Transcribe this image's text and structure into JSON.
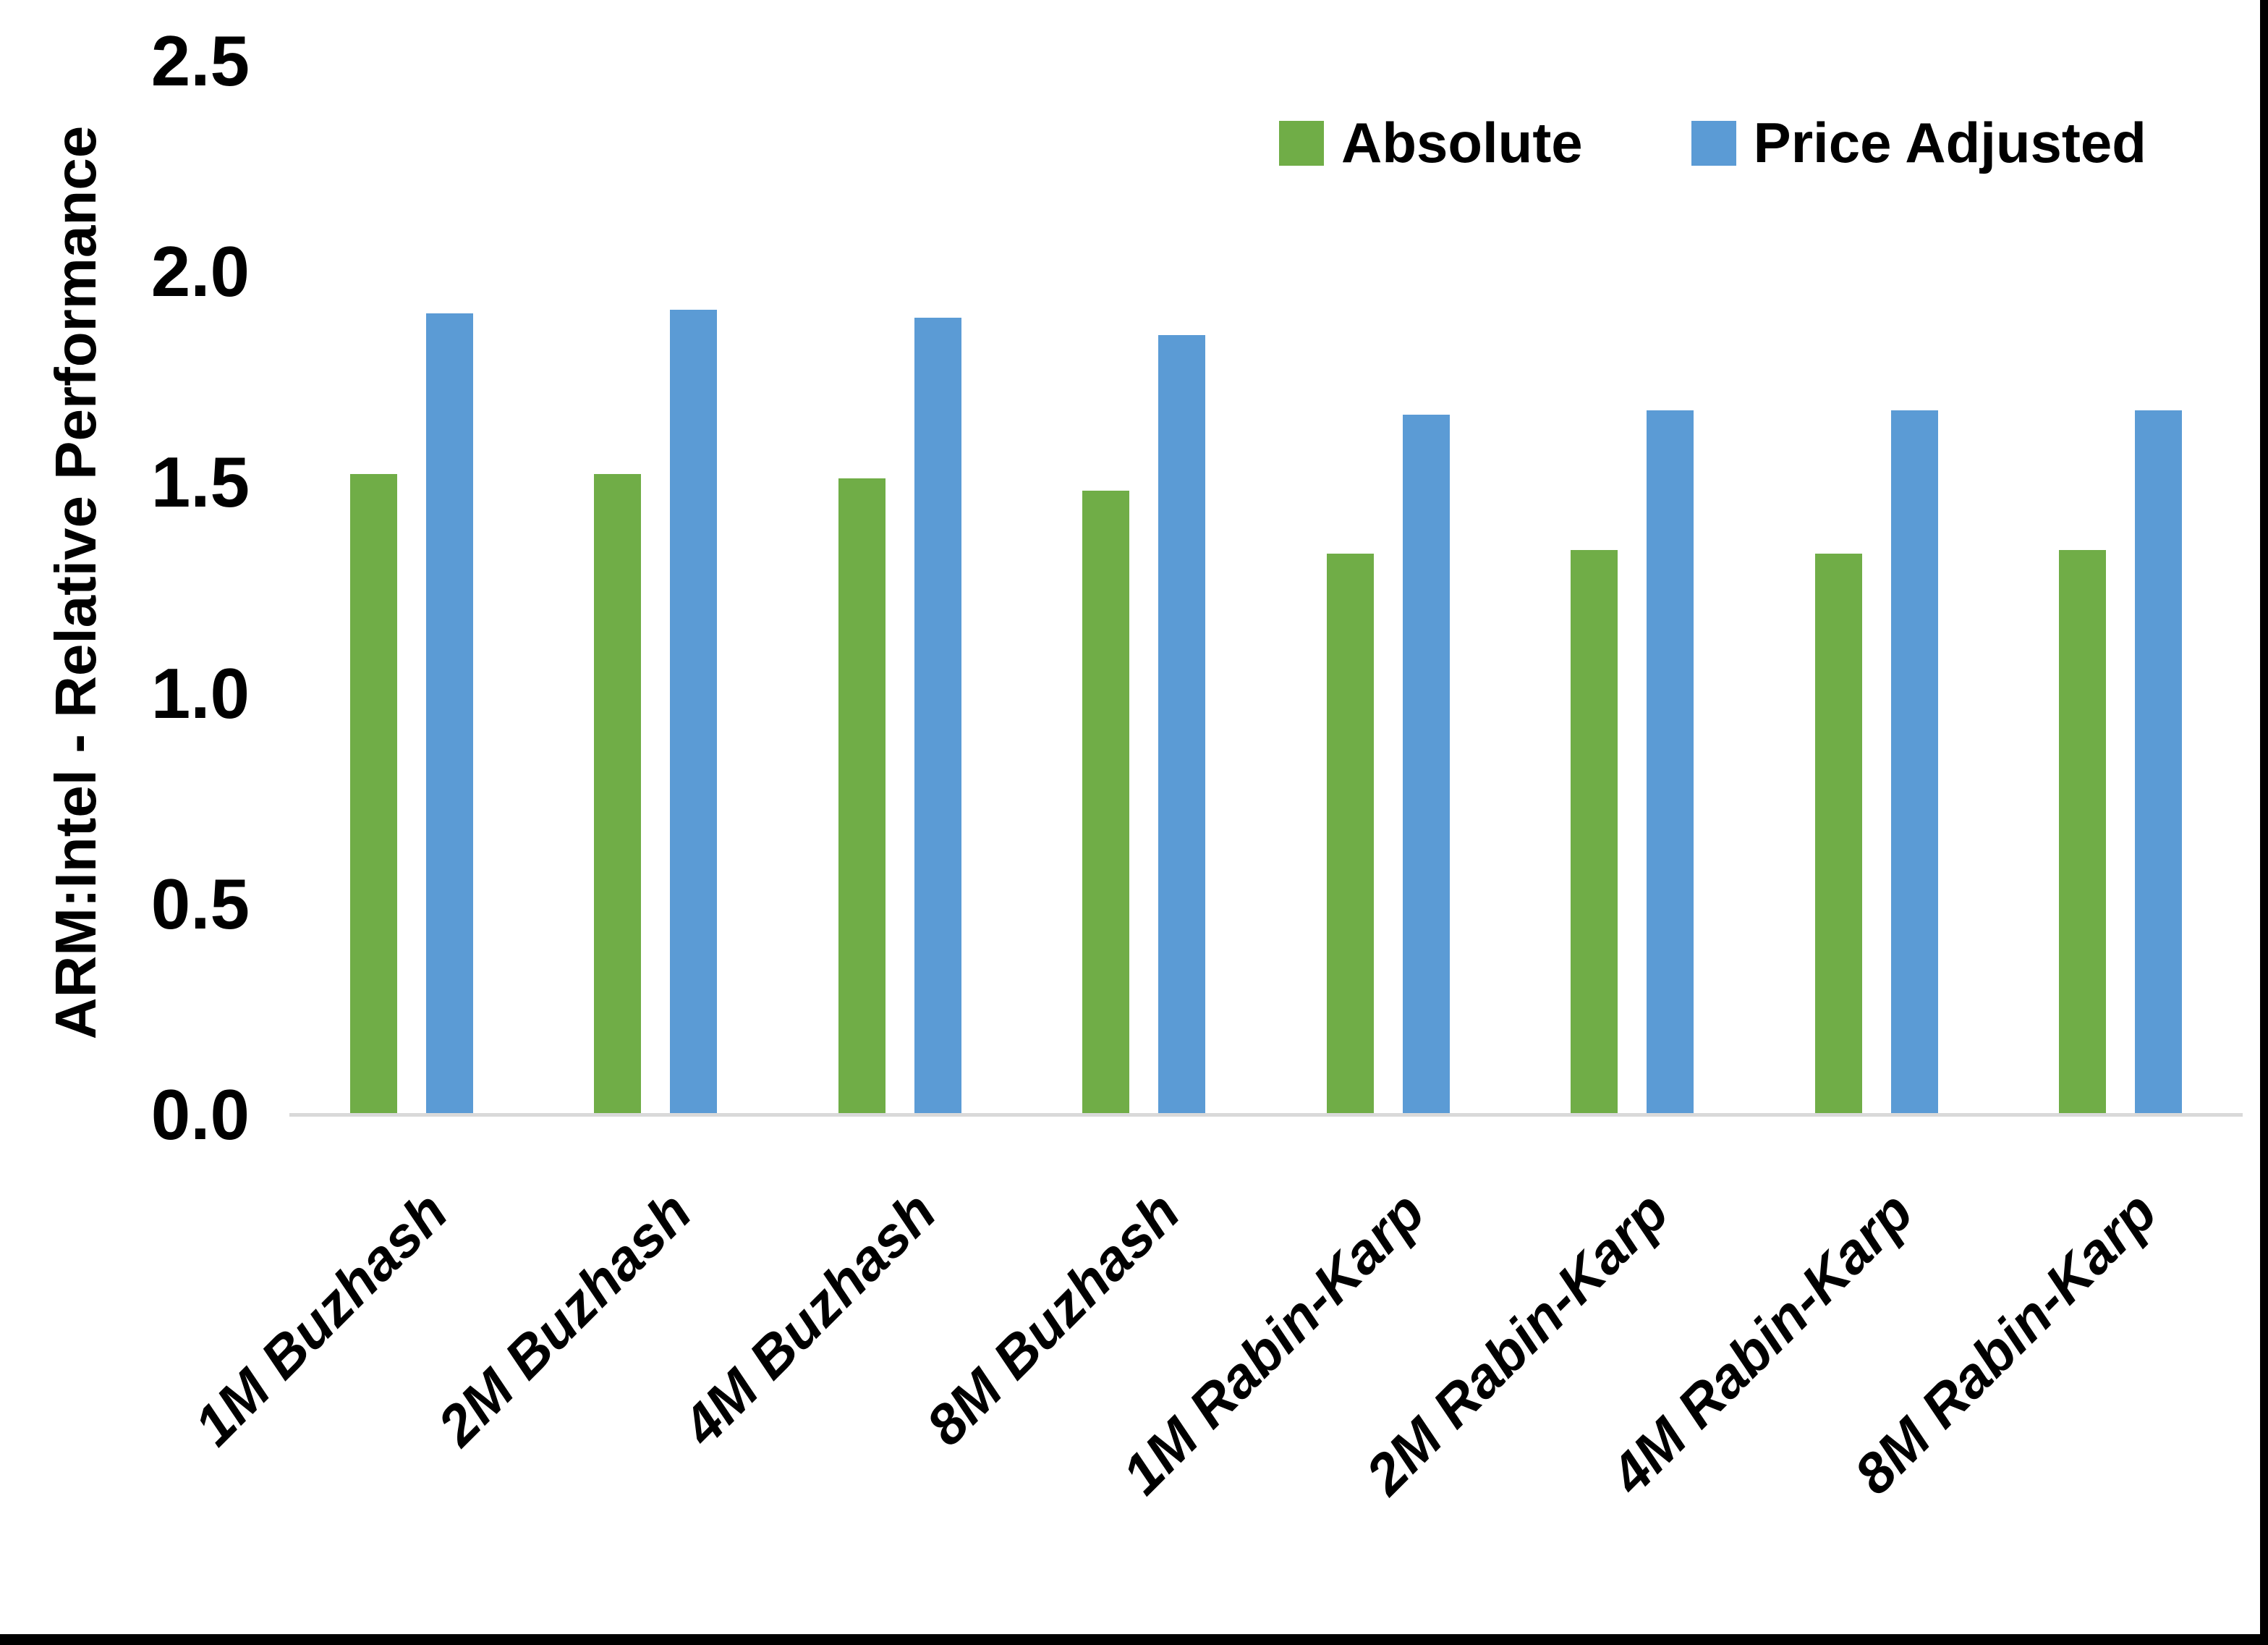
{
  "chart_data": {
    "type": "bar",
    "title": "",
    "xlabel": "",
    "ylabel": "ARM:Intel - Relative Performance",
    "ylim": [
      0,
      2.5
    ],
    "ytick_labels": [
      "0.0",
      "0.5",
      "1.0",
      "1.5",
      "2.0",
      "2.5"
    ],
    "grid": false,
    "legend_position": "top-right",
    "categories": [
      "1M Buzhash",
      "2M Buzhash",
      "4M Buzhash",
      "8M Buzhash",
      "1M Rabin-Karp",
      "2M Rabin-Karp",
      "4M Rabin-Karp",
      "8M Rabin-Karp"
    ],
    "series": [
      {
        "name": "Absolute",
        "color": "#70AD47",
        "values": [
          1.52,
          1.52,
          1.51,
          1.48,
          1.33,
          1.34,
          1.33,
          1.34
        ]
      },
      {
        "name": "Price Adjusted",
        "color": "#5B9BD5",
        "values": [
          1.9,
          1.91,
          1.89,
          1.85,
          1.66,
          1.67,
          1.67,
          1.67
        ]
      }
    ],
    "axis_line_color": "#D9D9D9",
    "text_color": "#000000",
    "background_color": "#FFFFFF",
    "frame_border_color": "#000000"
  }
}
